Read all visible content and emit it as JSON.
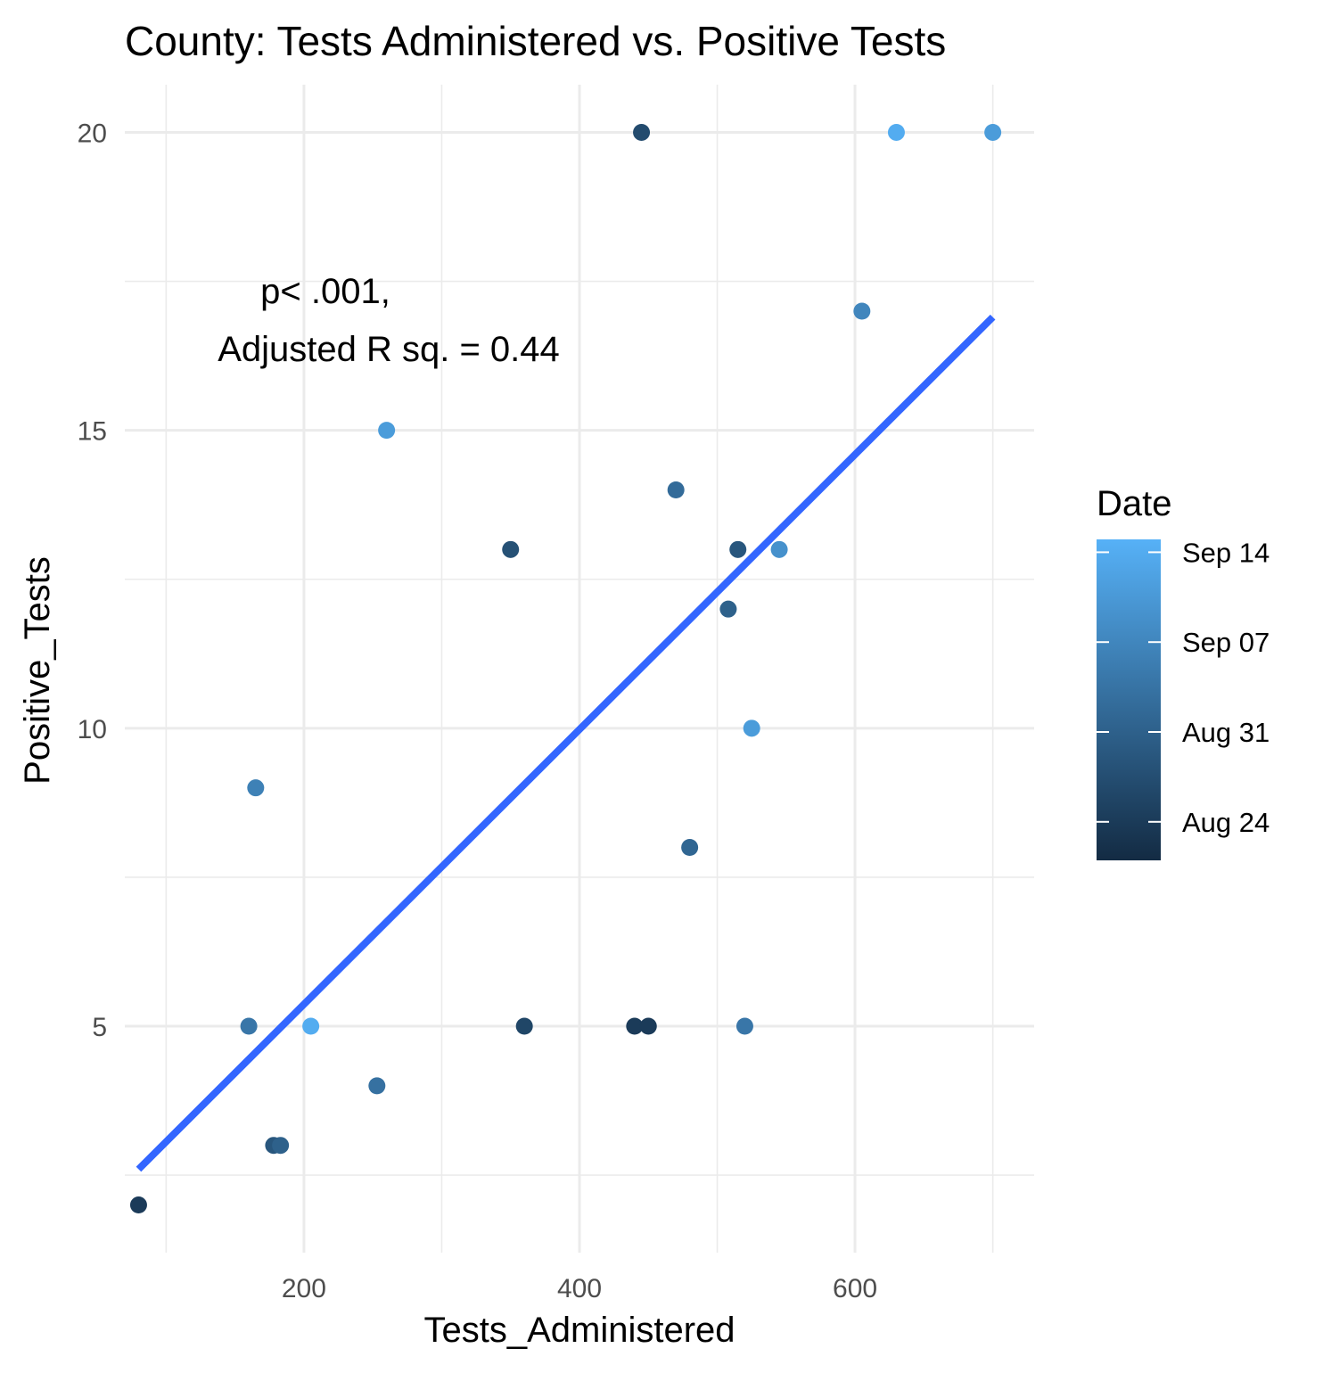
{
  "chart_data": {
    "type": "scatter",
    "title": "County: Tests Administered vs. Positive Tests",
    "xlabel": "Tests_Administered",
    "ylabel": "Positive_Tests",
    "xlim": [
      70,
      730
    ],
    "ylim": [
      1.2,
      20.8
    ],
    "x_ticks": [
      200,
      400,
      600
    ],
    "y_ticks": [
      5,
      10,
      15,
      20
    ],
    "x_tick_labels": [
      "200",
      "400",
      "600"
    ],
    "y_tick_labels": [
      "5",
      "10",
      "15",
      "20"
    ],
    "grid": true,
    "legend": {
      "title": "Date",
      "type": "colorbar",
      "position": "right",
      "low_color": "#132B43",
      "high_color": "#56B1F7",
      "range": [
        "Aug 21",
        "Sep 15"
      ],
      "ticks": [
        {
          "label": "Aug 24",
          "date": "2020-08-24"
        },
        {
          "label": "Aug 31",
          "date": "2020-08-31"
        },
        {
          "label": "Sep 07",
          "date": "2020-09-07"
        },
        {
          "label": "Sep 14",
          "date": "2020-09-14"
        }
      ]
    },
    "annotations": [
      "p< .001,",
      "Adjusted R sq. = 0.44"
    ],
    "fit_line": {
      "color": "#3366FF",
      "x": [
        80,
        700
      ],
      "y": [
        2.6,
        16.9
      ]
    },
    "points": [
      {
        "x": 445,
        "y": 20,
        "date": "2020-08-27"
      },
      {
        "x": 630,
        "y": 20,
        "date": "2020-09-14"
      },
      {
        "x": 700,
        "y": 20,
        "date": "2020-09-11"
      },
      {
        "x": 605,
        "y": 17,
        "date": "2020-09-07"
      },
      {
        "x": 260,
        "y": 15,
        "date": "2020-09-11"
      },
      {
        "x": 470,
        "y": 14,
        "date": "2020-09-02"
      },
      {
        "x": 350,
        "y": 13,
        "date": "2020-08-28"
      },
      {
        "x": 515,
        "y": 13,
        "date": "2020-08-29"
      },
      {
        "x": 545,
        "y": 13,
        "date": "2020-09-09"
      },
      {
        "x": 508,
        "y": 12,
        "date": "2020-08-31"
      },
      {
        "x": 525,
        "y": 10,
        "date": "2020-09-11"
      },
      {
        "x": 165,
        "y": 9,
        "date": "2020-09-06"
      },
      {
        "x": 480,
        "y": 8,
        "date": "2020-09-01"
      },
      {
        "x": 160,
        "y": 5,
        "date": "2020-09-04"
      },
      {
        "x": 205,
        "y": 5,
        "date": "2020-09-14"
      },
      {
        "x": 360,
        "y": 5,
        "date": "2020-08-26"
      },
      {
        "x": 440,
        "y": 5,
        "date": "2020-08-24"
      },
      {
        "x": 450,
        "y": 5,
        "date": "2020-08-24"
      },
      {
        "x": 520,
        "y": 5,
        "date": "2020-09-04"
      },
      {
        "x": 253,
        "y": 4,
        "date": "2020-09-03"
      },
      {
        "x": 178,
        "y": 3,
        "date": "2020-08-29"
      },
      {
        "x": 183,
        "y": 3,
        "date": "2020-08-31"
      },
      {
        "x": 80,
        "y": 2,
        "date": "2020-08-24"
      }
    ]
  }
}
